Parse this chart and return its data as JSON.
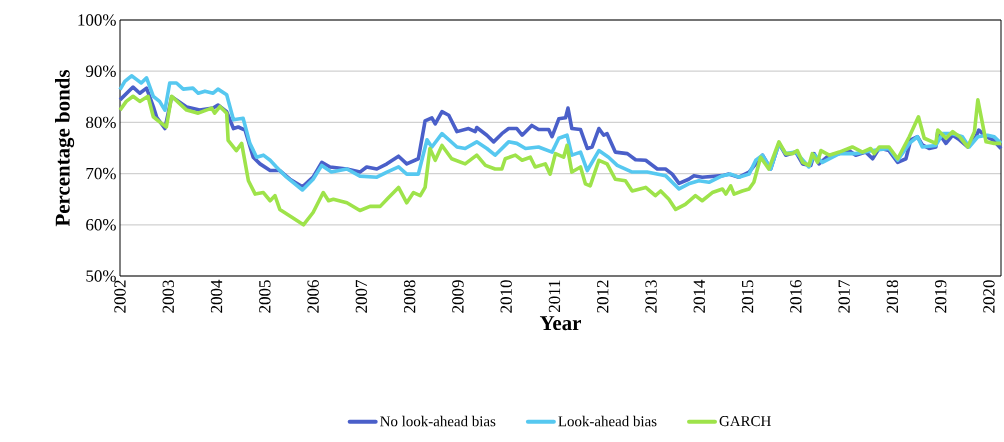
{
  "chart_data": {
    "type": "line",
    "xlabel": "Year",
    "ylabel": "Percentage bonds",
    "xlim": [
      2002,
      2020.25
    ],
    "xticks": [
      2002,
      2003,
      2004,
      2005,
      2006,
      2007,
      2008,
      2009,
      2010,
      2011,
      2012,
      2013,
      2014,
      2015,
      2016,
      2017,
      2018,
      2019,
      2020
    ],
    "ylim": [
      50,
      100
    ],
    "yticks": [
      {
        "value": 50,
        "label": "50%"
      },
      {
        "value": 60,
        "label": "60%"
      },
      {
        "value": 70,
        "label": "70%"
      },
      {
        "value": 80,
        "label": "80%"
      },
      {
        "value": 90,
        "label": "90%"
      },
      {
        "value": 100,
        "label": "100%"
      }
    ],
    "grid": "y",
    "legend": "bottom",
    "series": [
      {
        "name": "No look-ahead bias",
        "color": "#4a5fc9",
        "x": [
          2002.0,
          2002.27,
          2002.41,
          2002.55,
          2002.69,
          2002.76,
          2002.93,
          2003.07,
          2003.38,
          2003.65,
          2003.93,
          2004.03,
          2004.21,
          2004.35,
          2004.45,
          2004.59,
          2004.76,
          2004.9,
          2005.11,
          2005.31,
          2005.52,
          2005.78,
          2006.0,
          2006.18,
          2006.35,
          2006.7,
          2006.97,
          2007.11,
          2007.32,
          2007.53,
          2007.77,
          2007.94,
          2008.18,
          2008.32,
          2008.46,
          2008.53,
          2008.67,
          2008.81,
          2008.98,
          2009.22,
          2009.36,
          2009.39,
          2009.6,
          2009.74,
          2009.91,
          2010.05,
          2010.22,
          2010.33,
          2010.53,
          2010.67,
          2010.88,
          2010.95,
          2011.09,
          2011.23,
          2011.28,
          2011.36,
          2011.54,
          2011.68,
          2011.78,
          2011.92,
          2012.02,
          2012.09,
          2012.26,
          2012.51,
          2012.68,
          2012.89,
          2013.13,
          2013.3,
          2013.44,
          2013.58,
          2013.78,
          2013.89,
          2014.06,
          2014.48,
          2014.61,
          2014.82,
          2015.03,
          2015.17,
          2015.31,
          2015.48,
          2015.65,
          2015.79,
          2016.0,
          2016.14,
          2016.31,
          2016.38,
          2016.48,
          2016.69,
          2016.9,
          2017.1,
          2017.24,
          2017.45,
          2017.59,
          2017.73,
          2017.93,
          2018.11,
          2018.28,
          2018.38,
          2018.52,
          2018.62,
          2018.76,
          2018.9,
          2018.94,
          2019.11,
          2019.25,
          2019.39,
          2019.56,
          2019.73,
          2019.79,
          2019.94,
          2020.08,
          2020.25
        ],
        "values": [
          84.4,
          86.9,
          85.7,
          86.7,
          83.1,
          81,
          78.8,
          85,
          83,
          82.4,
          82.8,
          83.4,
          82.1,
          78.8,
          79.1,
          78.5,
          73.2,
          71.9,
          70.6,
          70.6,
          68.9,
          67.4,
          69.3,
          72.2,
          71.3,
          70.9,
          70.3,
          71.3,
          70.9,
          71.9,
          73.4,
          71.9,
          72.9,
          80.3,
          80.9,
          79.7,
          82.1,
          81.4,
          78.2,
          78.8,
          78.2,
          79,
          77.5,
          76.2,
          77.8,
          78.8,
          78.8,
          77.5,
          79.4,
          78.6,
          78.6,
          77.2,
          80.7,
          80.9,
          82.8,
          78.8,
          78.6,
          74.9,
          75.2,
          78.8,
          77.5,
          77.8,
          74.2,
          73.9,
          72.7,
          72.6,
          70.9,
          70.9,
          69.9,
          68.1,
          68.9,
          69.6,
          69.3,
          69.6,
          69.9,
          69.3,
          70.3,
          71.9,
          73.6,
          70.9,
          75.9,
          73.6,
          74.2,
          71.9,
          71.6,
          73.9,
          71.9,
          73.6,
          73.9,
          74.5,
          73.6,
          74.2,
          72.9,
          75,
          74.5,
          72.2,
          72.9,
          76.6,
          77.2,
          75.6,
          74.9,
          75.2,
          78.2,
          75.9,
          77.5,
          76.6,
          75.2,
          77.2,
          78.5,
          77.2,
          76.6,
          74.9
        ]
      },
      {
        "name": "Look-ahead bias",
        "color": "#56c8f0",
        "x": [
          2002.0,
          2002.1,
          2002.24,
          2002.34,
          2002.44,
          2002.55,
          2002.69,
          2002.82,
          2002.93,
          2003.03,
          2003.17,
          2003.31,
          2003.51,
          2003.62,
          2003.76,
          2003.93,
          2004.03,
          2004.21,
          2004.35,
          2004.55,
          2004.69,
          2004.83,
          2004.97,
          2005.11,
          2005.24,
          2005.45,
          2005.78,
          2006.0,
          2006.18,
          2006.38,
          2006.7,
          2006.97,
          2007.32,
          2007.53,
          2007.77,
          2007.94,
          2008.18,
          2008.36,
          2008.46,
          2008.67,
          2008.98,
          2009.15,
          2009.39,
          2009.6,
          2009.77,
          2010.05,
          2010.22,
          2010.4,
          2010.67,
          2010.95,
          2011.09,
          2011.26,
          2011.36,
          2011.54,
          2011.68,
          2011.92,
          2012.12,
          2012.3,
          2012.61,
          2012.92,
          2013.3,
          2013.58,
          2013.78,
          2013.99,
          2014.2,
          2014.48,
          2014.65,
          2014.82,
          2015.03,
          2015.17,
          2015.31,
          2015.48,
          2015.65,
          2015.79,
          2016.0,
          2016.27,
          2016.38,
          2016.55,
          2016.9,
          2017.24,
          2017.59,
          2017.93,
          2018.11,
          2018.35,
          2018.52,
          2018.62,
          2018.9,
          2019.04,
          2019.25,
          2019.45,
          2019.59,
          2019.77,
          2019.97,
          2020.11,
          2020.25
        ],
        "values": [
          86.4,
          88,
          89.1,
          88.4,
          87.7,
          88.7,
          85.1,
          84.1,
          82.4,
          87.7,
          87.7,
          86.5,
          86.7,
          85.7,
          86.1,
          85.7,
          86.5,
          85.4,
          80.5,
          80.8,
          75.9,
          73.2,
          73.6,
          72.6,
          71.3,
          69.3,
          66.8,
          68.9,
          71.6,
          70.3,
          70.9,
          69.5,
          69.3,
          70.3,
          71.3,
          69.9,
          69.9,
          76.6,
          75.2,
          77.8,
          75.2,
          74.9,
          76.2,
          74.9,
          73.6,
          76.2,
          75.9,
          74.9,
          75.2,
          74.2,
          76.9,
          77.5,
          73.6,
          74.2,
          70.6,
          74.5,
          73.2,
          71.6,
          70.3,
          70.3,
          69.6,
          67,
          68,
          68.6,
          68.3,
          69.6,
          69.9,
          69.3,
          69.9,
          72.6,
          73.6,
          70.9,
          75.9,
          73.9,
          74.2,
          71.3,
          73.7,
          72.2,
          73.9,
          73.9,
          74.5,
          74.9,
          72.6,
          75.9,
          77.2,
          75.2,
          75.5,
          77.8,
          77.8,
          77.2,
          75.2,
          77.2,
          77.5,
          77.2,
          75.9
        ]
      },
      {
        "name": "GARCH",
        "color": "#9ee34a",
        "x": [
          2002.0,
          2002.13,
          2002.27,
          2002.41,
          2002.58,
          2002.69,
          2002.82,
          2002.96,
          2003.07,
          2003.38,
          2003.62,
          2003.9,
          2003.96,
          2004.07,
          2004.21,
          2004.24,
          2004.41,
          2004.52,
          2004.66,
          2004.8,
          2004.97,
          2005.11,
          2005.21,
          2005.31,
          2005.52,
          2005.8,
          2006.0,
          2006.21,
          2006.32,
          2006.42,
          2006.7,
          2006.97,
          2007.18,
          2007.39,
          2007.56,
          2007.77,
          2007.94,
          2008.08,
          2008.22,
          2008.32,
          2008.42,
          2008.53,
          2008.67,
          2008.87,
          2009.15,
          2009.39,
          2009.57,
          2009.77,
          2009.91,
          2009.98,
          2010.19,
          2010.33,
          2010.5,
          2010.6,
          2010.81,
          2010.91,
          2011.02,
          2011.19,
          2011.26,
          2011.36,
          2011.54,
          2011.64,
          2011.74,
          2011.92,
          2012.09,
          2012.26,
          2012.47,
          2012.61,
          2012.89,
          2013.09,
          2013.2,
          2013.37,
          2013.51,
          2013.71,
          2013.92,
          2014.06,
          2014.27,
          2014.48,
          2014.55,
          2014.65,
          2014.72,
          2014.89,
          2015.03,
          2015.13,
          2015.27,
          2015.44,
          2015.65,
          2015.79,
          2015.93,
          2016.03,
          2016.14,
          2016.27,
          2016.34,
          2016.45,
          2016.52,
          2016.69,
          2016.9,
          2017.17,
          2017.38,
          2017.55,
          2017.62,
          2017.73,
          2017.93,
          2018.11,
          2018.35,
          2018.54,
          2018.66,
          2018.9,
          2018.94,
          2019.11,
          2019.25,
          2019.39,
          2019.56,
          2019.7,
          2019.77,
          2019.94,
          2020.11,
          2020.25
        ],
        "values": [
          82.4,
          84.1,
          85.1,
          84.1,
          85.1,
          81.1,
          80.1,
          79.1,
          85.1,
          82.4,
          81.8,
          82.8,
          81.8,
          83.1,
          81.8,
          76.5,
          74.5,
          75.9,
          68.6,
          66,
          66.3,
          64.7,
          65.7,
          63,
          61.7,
          60,
          62.4,
          66.3,
          64.7,
          65,
          64.3,
          62.8,
          63.6,
          63.6,
          65.3,
          67.3,
          64.3,
          66.3,
          65.7,
          67.3,
          74.9,
          72.6,
          75.5,
          72.9,
          71.9,
          73.6,
          71.6,
          70.9,
          70.9,
          72.9,
          73.6,
          72.6,
          73.2,
          71.3,
          71.9,
          69.9,
          73.9,
          73.2,
          75.5,
          70.3,
          71.3,
          68,
          67.6,
          72.6,
          71.9,
          68.9,
          68.6,
          66.6,
          67.3,
          65.7,
          66.6,
          65,
          63,
          64,
          65.7,
          64.7,
          66.3,
          67,
          66,
          67.6,
          66,
          66.6,
          67,
          68.3,
          73.2,
          70.9,
          76.2,
          73.9,
          73.9,
          74.5,
          72.2,
          71.6,
          73.9,
          72.2,
          74.5,
          73.6,
          74.2,
          75.2,
          74.2,
          74.9,
          73.9,
          75.2,
          75.2,
          72.9,
          77.2,
          81.1,
          76.9,
          75.9,
          78.5,
          76.9,
          78.2,
          77.2,
          75.2,
          78.2,
          84.4,
          76.2,
          75.9,
          75.9
        ]
      }
    ]
  }
}
